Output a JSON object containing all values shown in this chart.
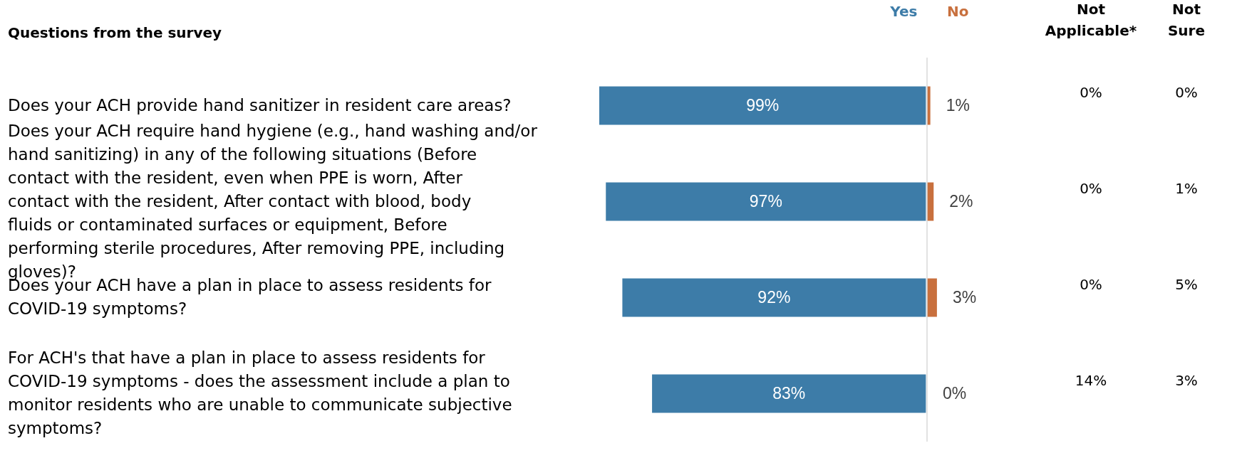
{
  "chart_data": [
    {
      "type": "bar",
      "orientation": "horizontal",
      "ylabel": "Questions from the survey",
      "categories": [
        "Does your ACH provide hand sanitizer in resident care areas?",
        "Does your ACH require hand hygiene (e.g., hand washing and/or hand sanitizing) in any of the following situations (Before contact with the resident, even when PPE is worn, After contact with the resident, After contact with blood, body fluids or contaminated surfaces or equipment, Before performing sterile procedures, After removing PPE, including gloves)?",
        "Does your ACH have a plan in place to assess residents for COVID-19 symptoms?",
        "For ACH's that have a plan in place to assess residents for COVID-19 symptoms - does the assessment include a plan to monitor residents who are unable to communicate subjective symptoms?"
      ],
      "xlim": [
        99,
        0
      ],
      "series": [
        {
          "name": "Yes",
          "color": "#3d7ca8",
          "values": [
            99,
            97,
            92,
            83
          ],
          "value_labels": [
            "99%",
            "97%",
            "92%",
            "83%"
          ]
        }
      ]
    },
    {
      "type": "bar",
      "orientation": "horizontal",
      "categories": [
        null,
        null,
        null,
        null
      ],
      "series": [
        {
          "name": "No",
          "color": "#c8703e",
          "values": [
            1,
            2,
            3,
            0
          ],
          "value_labels": [
            "1%",
            "2%",
            "3%",
            "0%"
          ]
        }
      ]
    },
    {
      "type": "other",
      "categories": [
        null,
        null,
        null,
        null
      ],
      "annotations": [
        "Not Applicable*",
        "0%",
        "0%",
        "0%",
        "14%",
        "Not Sure",
        "0%",
        "1%",
        "5%",
        "3%"
      ]
    }
  ]
}
